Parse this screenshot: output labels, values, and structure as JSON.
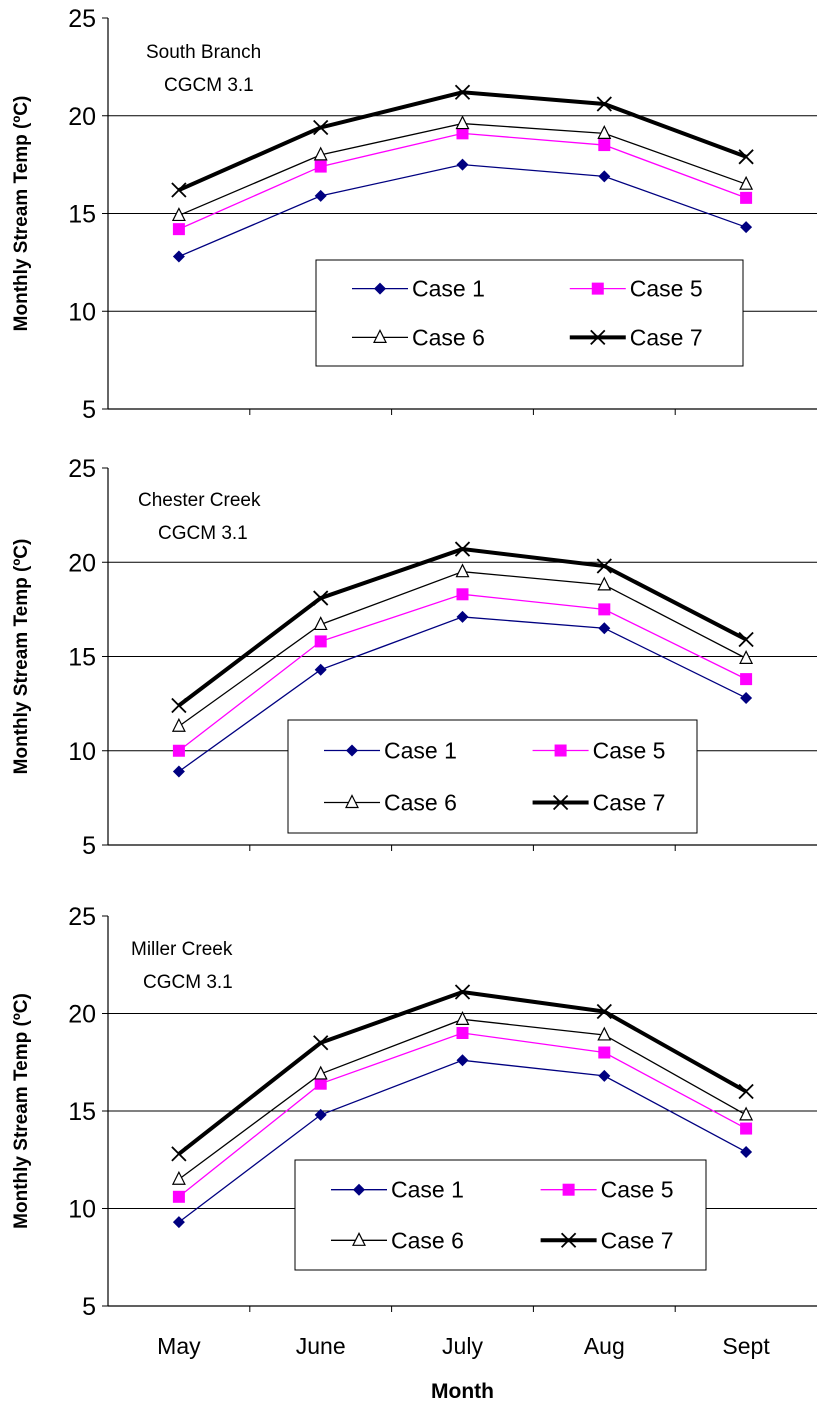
{
  "chart_data": [
    {
      "type": "line",
      "title": "South Branch",
      "subtitle": "CGCM 3.1",
      "ylabel": "Monthly Stream Temp (ºC)",
      "xlabel": "",
      "ylim": [
        5,
        25
      ],
      "yticks": [
        "5",
        "10",
        "15",
        "20",
        "25"
      ],
      "grid": true,
      "legend": "center",
      "categories": [
        "May",
        "June",
        "July",
        "Aug",
        "Sept"
      ],
      "series": [
        {
          "name": "Case 1",
          "color": "#000080",
          "marker": "diamond",
          "values": [
            12.8,
            15.9,
            17.5,
            16.9,
            14.3
          ]
        },
        {
          "name": "Case 5",
          "color": "#ff00ff",
          "marker": "square",
          "values": [
            14.2,
            17.4,
            19.1,
            18.5,
            15.8
          ]
        },
        {
          "name": "Case 6",
          "color": "#000000",
          "marker": "triangle",
          "values": [
            14.9,
            18.0,
            19.6,
            19.1,
            16.5
          ]
        },
        {
          "name": "Case 7",
          "color": "#000000",
          "marker": "x",
          "values": [
            16.2,
            19.4,
            21.2,
            20.6,
            17.9
          ]
        }
      ]
    },
    {
      "type": "line",
      "title": "Chester Creek",
      "subtitle": "CGCM 3.1",
      "ylabel": "Monthly Stream Temp (ºC)",
      "xlabel": "",
      "ylim": [
        5,
        25
      ],
      "yticks": [
        "5",
        "10",
        "15",
        "20",
        "25"
      ],
      "grid": true,
      "legend": "bottom-center",
      "categories": [
        "May",
        "June",
        "July",
        "Aug",
        "Sept"
      ],
      "series": [
        {
          "name": "Case 1",
          "color": "#000080",
          "marker": "diamond",
          "values": [
            8.9,
            14.3,
            17.1,
            16.5,
            12.8
          ]
        },
        {
          "name": "Case 5",
          "color": "#ff00ff",
          "marker": "square",
          "values": [
            10.0,
            15.8,
            18.3,
            17.5,
            13.8
          ]
        },
        {
          "name": "Case 6",
          "color": "#000000",
          "marker": "triangle",
          "values": [
            11.3,
            16.7,
            19.5,
            18.8,
            14.9
          ]
        },
        {
          "name": "Case 7",
          "color": "#000000",
          "marker": "x",
          "values": [
            12.4,
            18.1,
            20.7,
            19.8,
            15.9
          ]
        }
      ]
    },
    {
      "type": "line",
      "title": "Miller Creek",
      "subtitle": "CGCM 3.1",
      "ylabel": "Monthly Stream Temp (ºC)",
      "xlabel": "Month",
      "ylim": [
        5,
        25
      ],
      "yticks": [
        "5",
        "10",
        "15",
        "20",
        "25"
      ],
      "grid": true,
      "legend": "bottom-center",
      "categories": [
        "May",
        "June",
        "July",
        "Aug",
        "Sept"
      ],
      "series": [
        {
          "name": "Case 1",
          "color": "#000080",
          "marker": "diamond",
          "values": [
            9.3,
            14.8,
            17.6,
            16.8,
            12.9
          ]
        },
        {
          "name": "Case 5",
          "color": "#ff00ff",
          "marker": "square",
          "values": [
            10.6,
            16.4,
            19.0,
            18.0,
            14.1
          ]
        },
        {
          "name": "Case 6",
          "color": "#000000",
          "marker": "triangle",
          "values": [
            11.5,
            16.9,
            19.7,
            18.9,
            14.8
          ]
        },
        {
          "name": "Case 7",
          "color": "#000000",
          "marker": "x",
          "values": [
            12.8,
            18.5,
            21.1,
            20.1,
            16.0
          ]
        }
      ]
    }
  ]
}
